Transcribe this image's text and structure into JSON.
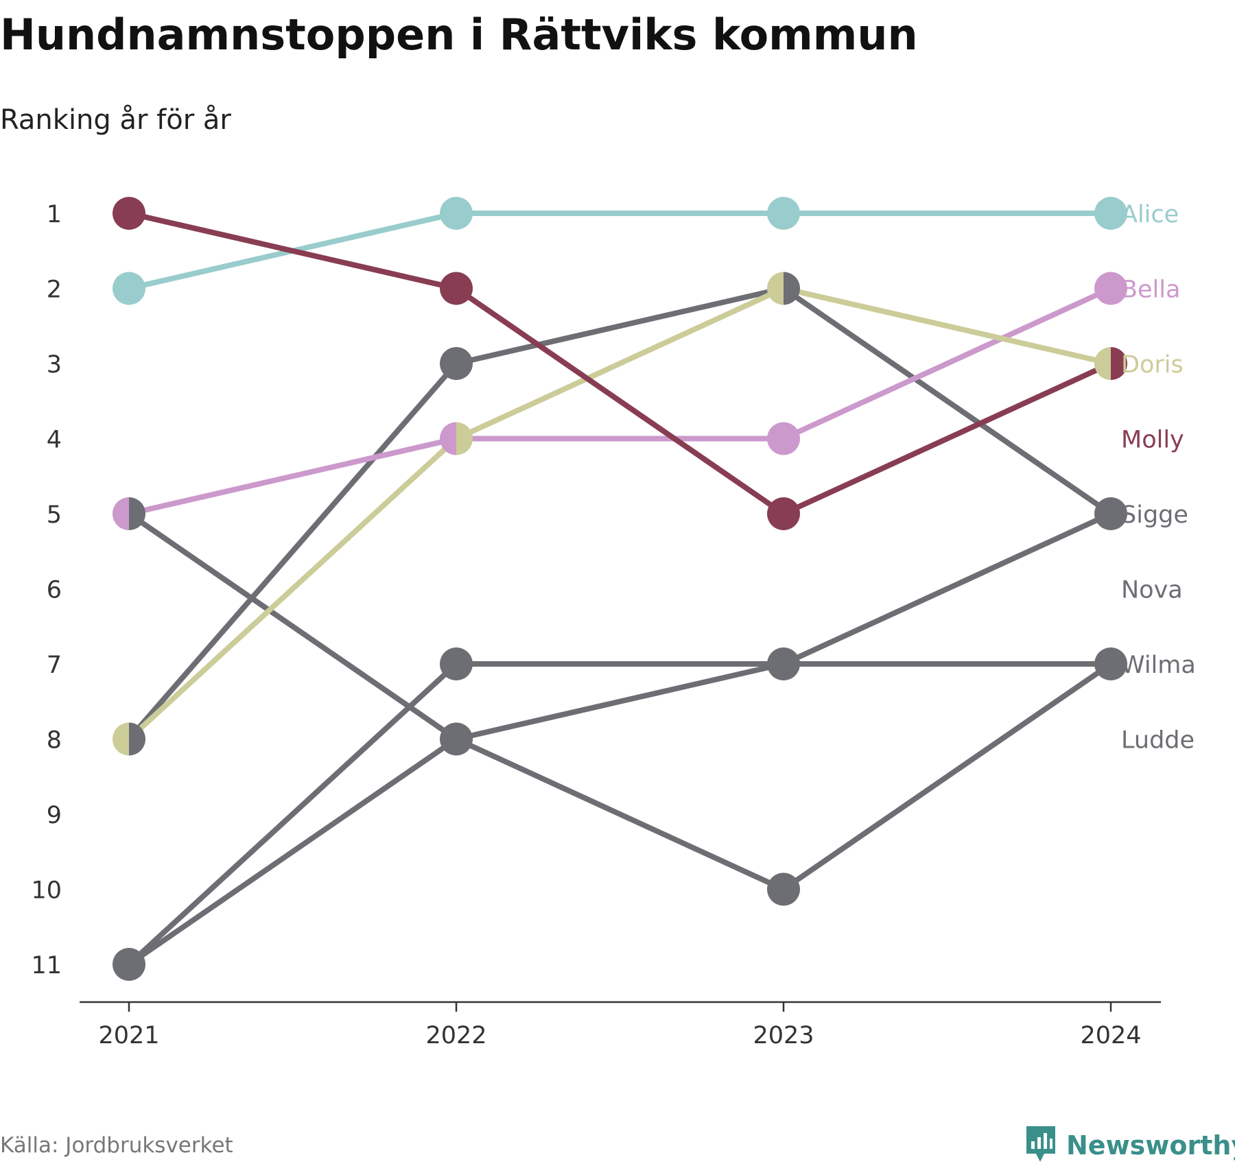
{
  "header": {
    "title": "Hundnamnstoppen i Rättviks kommun",
    "subtitle": "Ranking år för år"
  },
  "footer": {
    "source": "Källa: Jordbruksverket",
    "brand": "Newsworthy",
    "brand_icon": "bar-chart-speech-bubble-icon"
  },
  "chart_data": {
    "type": "line",
    "title": "Hundnamnstoppen i Rättviks kommun",
    "subtitle": "Ranking år för år",
    "x": [
      "2021",
      "2022",
      "2023",
      "2024"
    ],
    "y_ticks": [
      "1",
      "2",
      "3",
      "4",
      "5",
      "6",
      "7",
      "8",
      "9",
      "10",
      "11"
    ],
    "ylim": [
      1,
      11
    ],
    "y_inverted": true,
    "grid": false,
    "legend": "direct labels at right end",
    "series": [
      {
        "name": "Alice",
        "color": "#99cccc",
        "values": [
          2,
          1,
          1,
          1
        ]
      },
      {
        "name": "Bella",
        "color": "#cc99cc",
        "values": [
          5,
          4,
          4,
          2
        ]
      },
      {
        "name": "Doris",
        "color": "#cccc99",
        "values": [
          8,
          4,
          2,
          3
        ]
      },
      {
        "name": "Molly",
        "color": "#883d52",
        "values": [
          1,
          2,
          5,
          3
        ]
      },
      {
        "name": "Sigge",
        "color": "#6d6d74",
        "values": [
          8,
          3,
          2,
          5
        ]
      },
      {
        "name": "Nova",
        "color": "#6d6d74",
        "values": [
          11,
          7,
          7,
          7
        ]
      },
      {
        "name": "Wilma",
        "color": "#6d6d74",
        "values": [
          11,
          8,
          7,
          5
        ]
      },
      {
        "name": "Ludde",
        "color": "#6d6d74",
        "values": [
          5,
          8,
          10,
          7
        ]
      }
    ]
  }
}
